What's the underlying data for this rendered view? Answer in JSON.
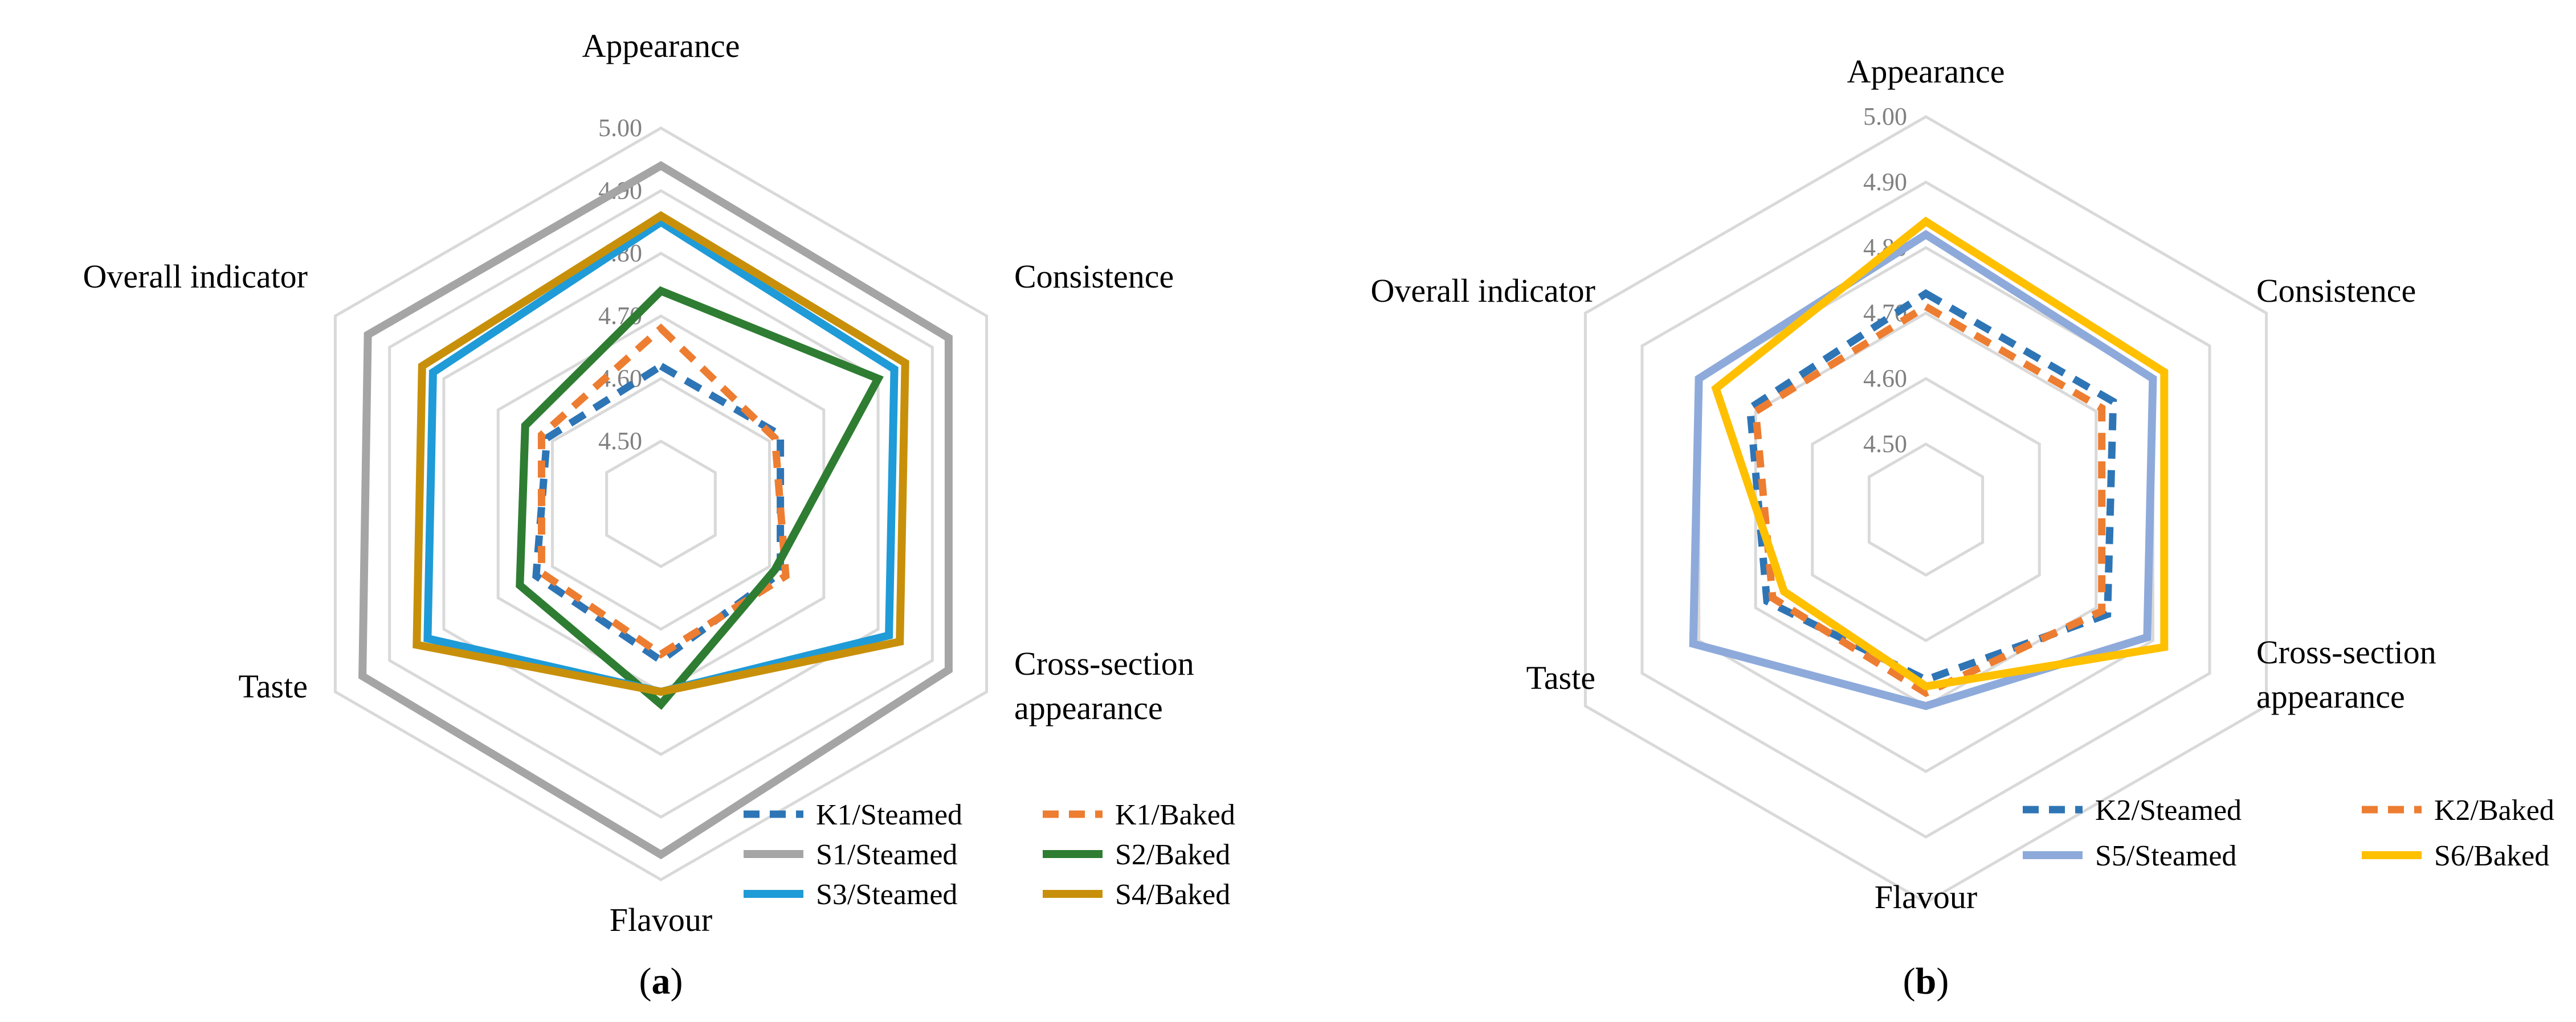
{
  "chart_data": [
    {
      "type": "radar",
      "panel_label": "a",
      "axes": [
        "Appearance",
        "Consistence",
        "Cross-section appearance",
        "Flavour",
        "Taste",
        "Overall indicator"
      ],
      "axis_label_lines": [
        [
          "Appearance"
        ],
        [
          "Consistence"
        ],
        [
          "Cross-section",
          "appearance"
        ],
        [
          "Flavour"
        ],
        [
          "Taste"
        ],
        [
          "Overall indicator"
        ]
      ],
      "rlim": [
        4.4,
        5.0
      ],
      "ticks": [
        "4.50",
        "4.60",
        "4.70",
        "4.80",
        "4.90",
        "5.00"
      ],
      "grid": true,
      "legend_position": "bottom-right",
      "series": [
        {
          "name": "K1/Steamed",
          "values": [
            4.62,
            4.62,
            4.62,
            4.65,
            4.63,
            4.61
          ],
          "color": "#2e75b6",
          "dashed": true
        },
        {
          "name": "K1/Baked",
          "values": [
            4.68,
            4.61,
            4.63,
            4.64,
            4.62,
            4.62
          ],
          "color": "#ed7d31",
          "dashed": true
        },
        {
          "name": "S1/Steamed",
          "values": [
            4.94,
            4.93,
            4.93,
            4.96,
            4.95,
            4.94
          ],
          "color": "#a5a5a5",
          "dashed": false
        },
        {
          "name": "S2/Baked",
          "values": [
            4.74,
            4.8,
            4.61,
            4.72,
            4.66,
            4.65
          ],
          "color": "#2e7d32",
          "dashed": false
        },
        {
          "name": "S3/Steamed",
          "values": [
            4.85,
            4.83,
            4.82,
            4.7,
            4.83,
            4.82
          ],
          "color": "#1f9bd7",
          "dashed": false
        },
        {
          "name": "S4/Baked",
          "values": [
            4.86,
            4.85,
            4.84,
            4.7,
            4.85,
            4.84
          ],
          "color": "#c8900a",
          "dashed": false
        }
      ]
    },
    {
      "type": "radar",
      "panel_label": "b",
      "axes": [
        "Appearance",
        "Consistence",
        "Cross-section appearance",
        "Flavour",
        "Taste",
        "Overall indicator"
      ],
      "axis_label_lines": [
        [
          "Appearance"
        ],
        [
          "Consistence"
        ],
        [
          "Cross-section",
          "appearance"
        ],
        [
          "Flavour"
        ],
        [
          "Taste"
        ],
        [
          "Overall indicator"
        ]
      ],
      "rlim": [
        4.4,
        5.0
      ],
      "ticks": [
        "4.50",
        "4.60",
        "4.70",
        "4.80",
        "4.90",
        "5.00"
      ],
      "grid": true,
      "legend_position": "bottom-right",
      "series": [
        {
          "name": "K2/Steamed",
          "values": [
            4.73,
            4.73,
            4.72,
            4.66,
            4.68,
            4.71
          ],
          "color": "#2e75b6",
          "dashed": true
        },
        {
          "name": "K2/Baked",
          "values": [
            4.71,
            4.71,
            4.71,
            4.68,
            4.67,
            4.7
          ],
          "color": "#ed7d31",
          "dashed": true
        },
        {
          "name": "S5/Steamed",
          "values": [
            4.82,
            4.8,
            4.79,
            4.7,
            4.81,
            4.8
          ],
          "color": "#8eaadb",
          "dashed": false
        },
        {
          "name": "S6/Baked",
          "values": [
            4.84,
            4.82,
            4.82,
            4.67,
            4.65,
            4.77
          ],
          "color": "#ffc000",
          "dashed": false
        }
      ]
    }
  ]
}
